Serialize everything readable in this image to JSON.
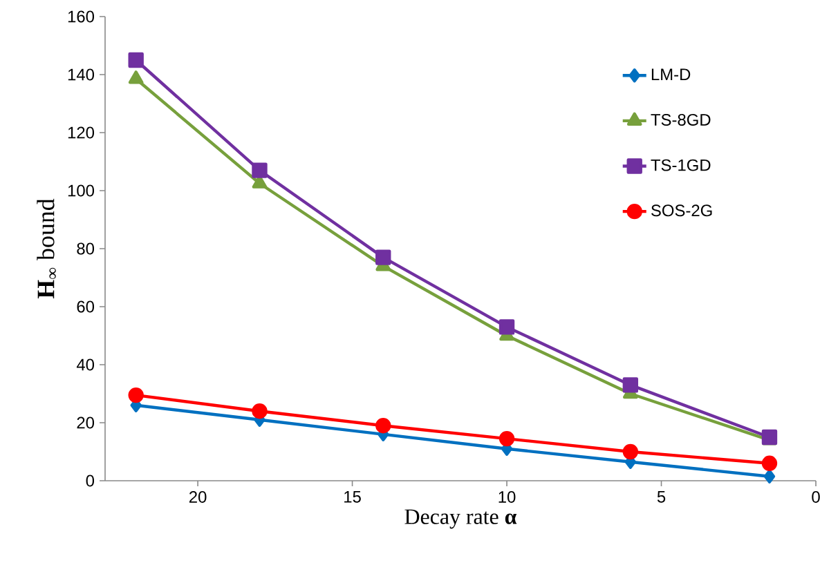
{
  "chart_data": {
    "type": "line",
    "xlabel": "Decay rate **α**",
    "ylabel": "**H**$_{∞}$ bound",
    "x": [
      22,
      18,
      14,
      10,
      6,
      1.5
    ],
    "xlim": [
      23,
      0
    ],
    "xticks": [
      20,
      15,
      10,
      5,
      0
    ],
    "ylim": [
      0,
      160
    ],
    "yticks": [
      0,
      20,
      40,
      60,
      80,
      100,
      120,
      140,
      160
    ],
    "grid": false,
    "legend": "top right",
    "series": [
      {
        "name": "LM-D",
        "color": "#0070c0",
        "marker": "diamond",
        "values": [
          26,
          21,
          16,
          11,
          6.5,
          1.5
        ]
      },
      {
        "name": "TS-8GD",
        "color": "#77a03c",
        "marker": "triangle",
        "values": [
          138.5,
          102.5,
          74,
          50,
          30,
          14
        ]
      },
      {
        "name": "TS-1GD",
        "color": "#7030a0",
        "marker": "square",
        "values": [
          145,
          107,
          77,
          53,
          33,
          15
        ]
      },
      {
        "name": "SOS-2G",
        "color": "#ff0000",
        "marker": "circle",
        "values": [
          29.5,
          24,
          19,
          14.5,
          10,
          6
        ]
      }
    ]
  }
}
